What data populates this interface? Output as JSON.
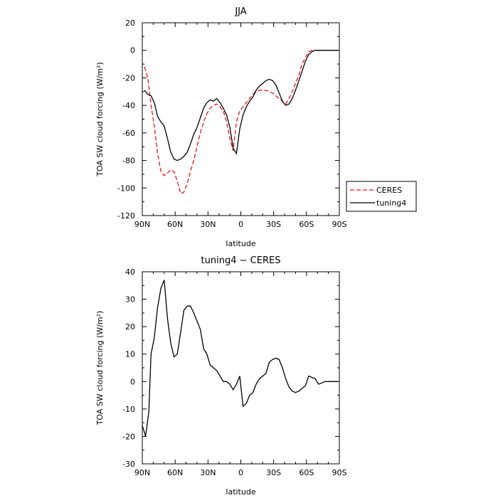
{
  "chart_data": [
    {
      "type": "line",
      "title": "JJA",
      "xlabel": "latitude",
      "ylabel": "TOA SW cloud forcing (W/m²)",
      "ylim": [
        -120,
        20
      ],
      "xlim": [
        90,
        -90
      ],
      "xticks": [
        {
          "value": 90,
          "label": "90N"
        },
        {
          "value": 60,
          "label": "60N"
        },
        {
          "value": 30,
          "label": "30N"
        },
        {
          "value": 0,
          "label": "0"
        },
        {
          "value": -30,
          "label": "30S"
        },
        {
          "value": -60,
          "label": "60S"
        },
        {
          "value": -90,
          "label": "90S"
        }
      ],
      "yticks": [
        20,
        0,
        -20,
        -40,
        -60,
        -80,
        -100,
        -120
      ],
      "legend_position": "right",
      "series": [
        {
          "name": "CERES",
          "color": "#e41a1c",
          "dash": "dashed",
          "x": [
            88,
            85,
            82,
            79,
            76,
            73,
            70,
            67,
            64,
            61,
            58,
            55,
            52,
            49,
            46,
            43,
            40,
            37,
            34,
            31,
            28,
            25,
            22,
            19,
            16,
            13,
            10,
            7,
            4,
            1,
            -2,
            -5,
            -8,
            -11,
            -14,
            -17,
            -20,
            -23,
            -26,
            -29,
            -32,
            -35,
            -38,
            -41,
            -44,
            -47,
            -50,
            -53,
            -56,
            -59,
            -62,
            -65,
            -68,
            -71,
            -74,
            -77,
            -80,
            -83,
            -86,
            -89
          ],
          "y": [
            -12,
            -20,
            -40,
            -55,
            -75,
            -88,
            -91,
            -89,
            -87,
            -88,
            -95,
            -104,
            -103,
            -97,
            -88,
            -80,
            -70,
            -60,
            -52,
            -46,
            -42,
            -40,
            -39,
            -41,
            -44,
            -52,
            -64,
            -73,
            -52,
            -44,
            -41,
            -38,
            -35,
            -32,
            -30,
            -29,
            -29,
            -29,
            -30,
            -31,
            -33,
            -35,
            -37,
            -39,
            -35,
            -30,
            -24,
            -18,
            -10,
            -5,
            -1,
            0,
            0,
            0,
            0,
            0,
            0,
            0,
            0,
            0
          ]
        },
        {
          "name": "tuning4",
          "color": "#000000",
          "dash": "solid",
          "x": [
            88,
            85,
            82,
            79,
            76,
            73,
            70,
            67,
            64,
            61,
            58,
            55,
            52,
            49,
            46,
            43,
            40,
            37,
            34,
            31,
            28,
            25,
            22,
            19,
            16,
            13,
            10,
            7,
            4,
            1,
            -2,
            -5,
            -8,
            -11,
            -14,
            -17,
            -20,
            -23,
            -26,
            -29,
            -32,
            -35,
            -38,
            -41,
            -44,
            -47,
            -50,
            -53,
            -56,
            -59,
            -62,
            -65,
            -68,
            -71,
            -74,
            -77,
            -80,
            -83,
            -86,
            -89
          ],
          "y": [
            -29,
            -32,
            -33,
            -38,
            -48,
            -52,
            -55,
            -64,
            -74,
            -79,
            -80,
            -79,
            -77,
            -74,
            -68,
            -61,
            -56,
            -49,
            -42,
            -38,
            -36,
            -37,
            -35,
            -38,
            -42,
            -47,
            -56,
            -71,
            -75,
            -57,
            -47,
            -41,
            -37,
            -34,
            -29,
            -26,
            -24,
            -22,
            -21,
            -22,
            -25,
            -31,
            -37,
            -40,
            -39,
            -35,
            -29,
            -22,
            -15,
            -8,
            -3,
            -1,
            0,
            0,
            0,
            0,
            0,
            0,
            0,
            0
          ]
        }
      ]
    },
    {
      "type": "line",
      "title": "tuning4 − CERES",
      "xlabel": "latitude",
      "ylabel": "TOA SW cloud forcing (W/m²)",
      "ylim": [
        -30,
        40
      ],
      "xlim": [
        90,
        -90
      ],
      "xticks": [
        {
          "value": 90,
          "label": "90N"
        },
        {
          "value": 60,
          "label": "60N"
        },
        {
          "value": 30,
          "label": "30N"
        },
        {
          "value": 0,
          "label": "0"
        },
        {
          "value": -30,
          "label": "30S"
        },
        {
          "value": -60,
          "label": "60S"
        },
        {
          "value": -90,
          "label": "90S"
        }
      ],
      "yticks": [
        40,
        30,
        20,
        10,
        0,
        -10,
        -20,
        -30
      ],
      "series": [
        {
          "name": "",
          "color": "#000000",
          "dash": "solid",
          "x": [
            90,
            87,
            84,
            82,
            79,
            76,
            73,
            70,
            67,
            64,
            61,
            58,
            55,
            52,
            49,
            46,
            43,
            40,
            37,
            34,
            31,
            28,
            25,
            22,
            19,
            16,
            13,
            10,
            7,
            4,
            1,
            -2,
            -5,
            -8,
            -11,
            -14,
            -17,
            -20,
            -23,
            -26,
            -29,
            -32,
            -35,
            -38,
            -41,
            -44,
            -47,
            -50,
            -53,
            -56,
            -59,
            -62,
            -65,
            -68,
            -71,
            -74,
            -77,
            -80,
            -83,
            -86,
            -89
          ],
          "y": [
            -16,
            -20,
            -11,
            10,
            16,
            27,
            34,
            37,
            23,
            14,
            9,
            10,
            18,
            26,
            27.5,
            27.5,
            25,
            22,
            19,
            12,
            10,
            6,
            5,
            4,
            2,
            0,
            0,
            -1,
            -3,
            -1,
            2,
            -9,
            -8,
            -5,
            -4,
            -1,
            1,
            2,
            3,
            7,
            8,
            8.5,
            8,
            5,
            1,
            -2,
            -3.5,
            -4,
            -3.5,
            -2.5,
            -1.5,
            2,
            1.5,
            1,
            -1,
            -0.5,
            0,
            0,
            0,
            0,
            0
          ]
        }
      ]
    }
  ]
}
